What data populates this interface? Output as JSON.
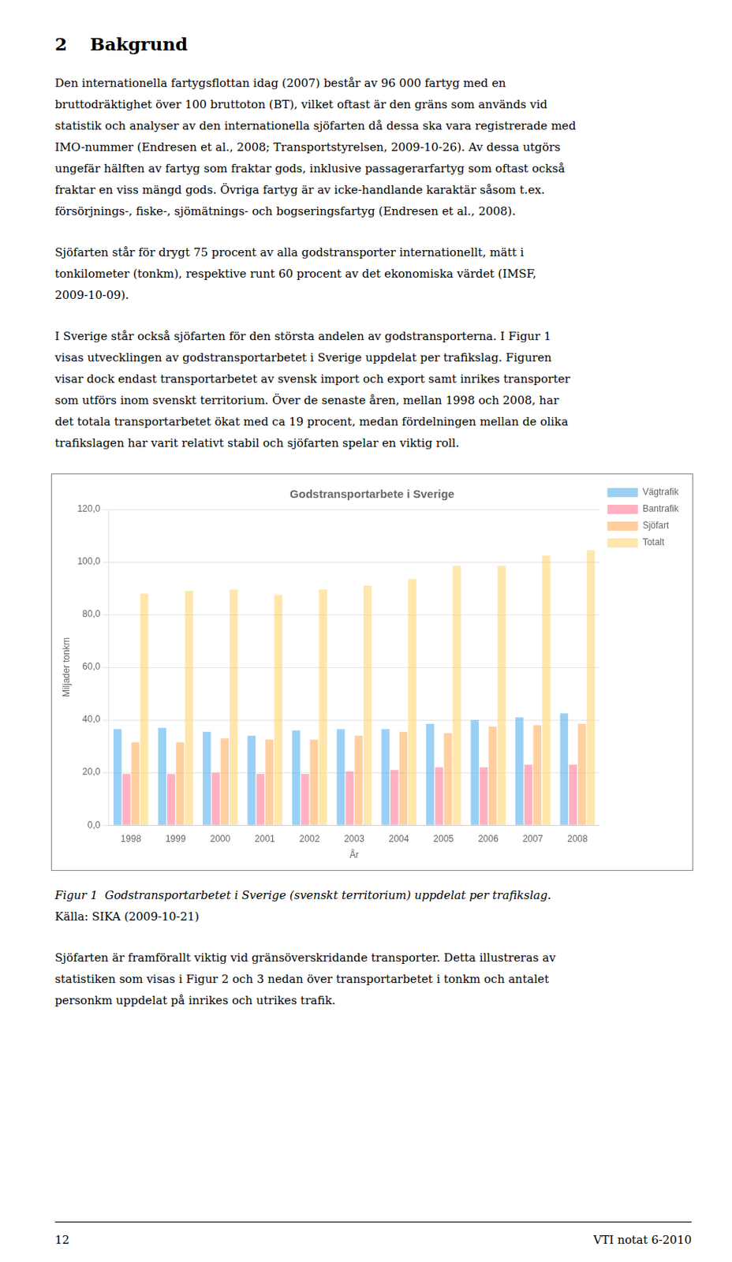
{
  "page": {
    "heading_number": "2",
    "heading_text": "Bakgrund",
    "paragraphs_before": [
      [
        "Den internationella fartygsflottan idag (2007) består av 96 000 fartyg med en",
        "bruttodräktighet över 100 bruttoton (BT), vilket oftast är den gräns som används vid",
        "statistik och analyser av den internationella sjöfarten då dessa ska vara registrerade med",
        "IMO-nummer (Endresen et al., 2008; Transportstyrelsen, 2009-10-26). Av dessa utgörs",
        "ungefär hälften av fartyg som fraktar gods, inklusive passagerarfartyg som oftast också",
        "fraktar en viss mängd gods. Övriga fartyg är av icke-handlande karaktär såsom t.ex.",
        "försörjnings-, fiske-, sjömätnings- och bogseringsfartyg (Endresen et al., 2008)."
      ],
      [
        "Sjöfarten står för drygt 75 procent av alla godstransporter internationellt, mätt i",
        "tonkilometer (tonkm), respektive runt 60 procent av det ekonomiska värdet (IMSF,",
        "2009-10-09)."
      ],
      [
        "I Sverige står också sjöfarten för den största andelen av godstransporterna. I Figur 1",
        "visas utvecklingen av godstransportarbetet i Sverige uppdelat per trafikslag. Figuren",
        "visar dock endast transportarbetet av svensk import och export samt inrikes transporter",
        "som utförs inom svenskt territorium. Över de senaste åren, mellan 1998 och 2008, har",
        "det totala transportarbetet ökat med ca 19 procent, medan fördelningen mellan de olika",
        "trafikslagen har varit relativt stabil och sjöfarten spelar en viktig roll."
      ]
    ],
    "caption": "Figur 1  Godstransportarbetet i Sverige (svenskt territorium) uppdelat per trafikslag.",
    "source": "Källa: SIKA (2009-10-21)",
    "paragraphs_after": [
      [
        "Sjöfarten är framförallt viktig vid gränsöverskridande transporter. Detta illustreras av",
        "statistiken som visas i Figur 2 och 3 nedan över transportarbetet i tonkm och antalet",
        "personkm uppdelat på inrikes och utrikes trafik."
      ]
    ],
    "page_number": "12",
    "report_id": "VTI notat 6-2010"
  },
  "chart_data": {
    "type": "bar",
    "title": "Godstransportarbete i Sverige",
    "xlabel": "År",
    "ylabel": "Miljader tonkm",
    "categories": [
      "1998",
      "1999",
      "2000",
      "2001",
      "2002",
      "2003",
      "2004",
      "2005",
      "2006",
      "2007",
      "2008"
    ],
    "series": [
      {
        "name": "Vägtrafik",
        "values": [
          36.5,
          37.0,
          35.5,
          34.0,
          36.0,
          36.5,
          36.5,
          38.5,
          40.0,
          41.0,
          42.5
        ]
      },
      {
        "name": "Bantrafik",
        "values": [
          19.5,
          19.5,
          20.0,
          19.5,
          19.5,
          20.5,
          21.0,
          22.0,
          22.0,
          23.0,
          23.0
        ]
      },
      {
        "name": "Sjöfart",
        "values": [
          31.5,
          31.5,
          33.0,
          32.5,
          32.5,
          34.0,
          35.5,
          35.0,
          37.5,
          38.0,
          38.5
        ]
      },
      {
        "name": "Totalt",
        "values": [
          88.0,
          89.0,
          89.5,
          87.5,
          89.5,
          91.0,
          93.5,
          98.5,
          98.5,
          102.5,
          104.5
        ]
      }
    ],
    "ylim": [
      0,
      120
    ],
    "yticks": [
      {
        "value": 0,
        "label": "0,0"
      },
      {
        "value": 20,
        "label": "20,0"
      },
      {
        "value": 40,
        "label": "40,0"
      },
      {
        "value": 60,
        "label": "60,0"
      },
      {
        "value": 80,
        "label": "80,0"
      },
      {
        "value": 100,
        "label": "100,0"
      },
      {
        "value": 120,
        "label": "120,0"
      }
    ],
    "grid": true,
    "legend": "right"
  }
}
